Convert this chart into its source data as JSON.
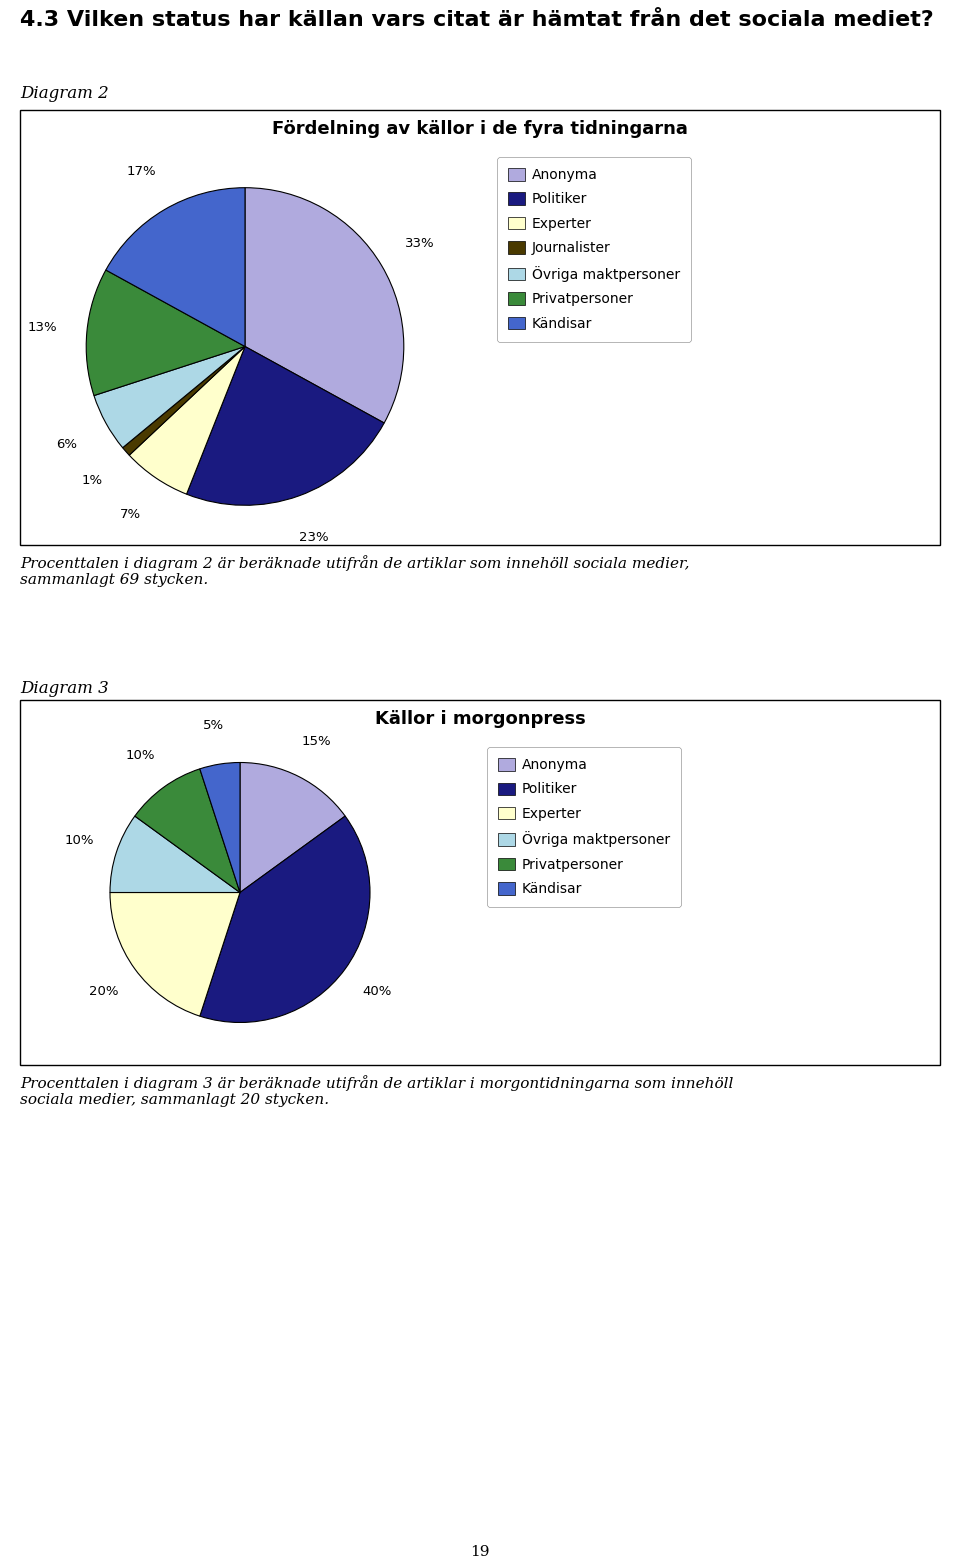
{
  "heading": "4.3 Vilken status har källan vars citat är hämtat från det sociala mediet?",
  "diagram2_label": "Diagram 2",
  "diagram2_title": "Fördelning av källor i de fyra tidningarna",
  "diagram2_values": [
    33,
    23,
    7,
    1,
    6,
    13,
    17
  ],
  "diagram2_pct_labels": [
    "33%",
    "23%",
    "7%",
    "1%",
    "6%",
    "13%",
    "17%"
  ],
  "diagram3_label": "Diagram 3",
  "diagram3_title": "Källor i morgonpress",
  "diagram3_values": [
    15,
    40,
    20,
    10,
    10,
    5
  ],
  "diagram3_pct_labels": [
    "15%",
    "40%",
    "20%",
    "10%",
    "10%",
    "5%"
  ],
  "legend_labels_d2": [
    "Anonyma",
    "Politiker",
    "Experter",
    "Journalister",
    "Övriga maktpersoner",
    "Privatpersoner",
    "Kändisar"
  ],
  "legend_labels_d3": [
    "Anonyma",
    "Politiker",
    "Experter",
    "Övriga maktpersoner",
    "Privatpersoner",
    "Kändisar"
  ],
  "colors_d2": [
    "#b0aade",
    "#1a1a80",
    "#ffffcc",
    "#4a3a00",
    "#add8e6",
    "#3a8a3a",
    "#4466cc"
  ],
  "colors_d3": [
    "#b0aade",
    "#1a1a80",
    "#ffffcc",
    "#add8e6",
    "#3a8a3a",
    "#4466cc"
  ],
  "footnote2": "Procenttalen i diagram 2 är beräknade utifrån de artiklar som innehöll sociala medier,\nsammanlagt 69 stycken.",
  "footnote3": "Procenttalen i diagram 3 är beräknade utifrån de artiklar i morgontidningarna som innehöll\nsociala medier, sammanlagt 20 stycken.",
  "page_number": "19",
  "heading_fontsize": 16,
  "title_fontsize": 13,
  "label_fontsize": 12,
  "footnote_fontsize": 11,
  "legend_fontsize": 10
}
